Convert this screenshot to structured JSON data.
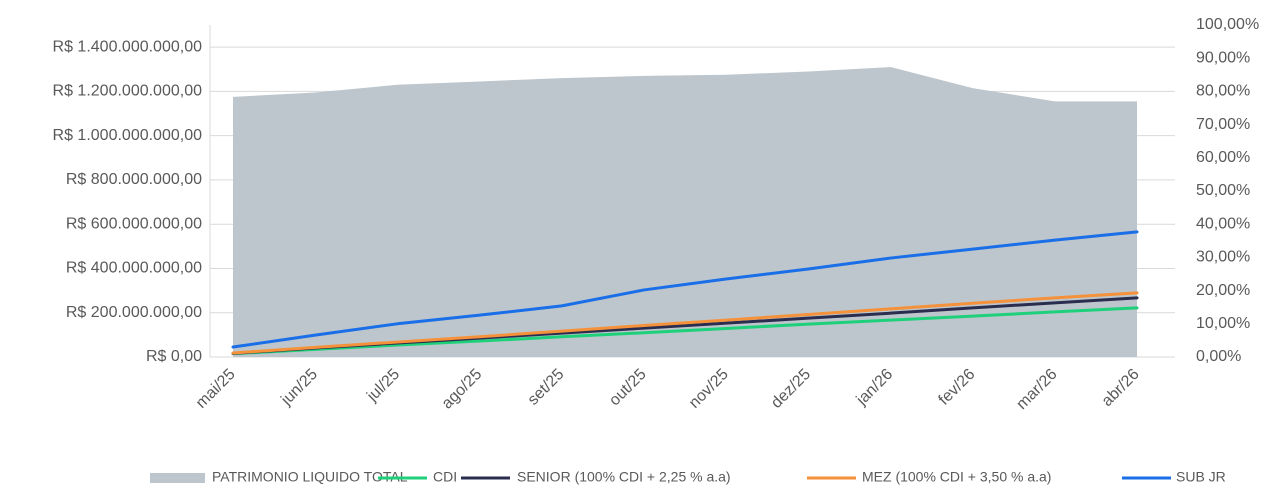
{
  "chart_data": {
    "type": "combo",
    "categories": [
      "mai/25",
      "jun/25",
      "jul/25",
      "ago/25",
      "set/25",
      "out/25",
      "nov/25",
      "dez/25",
      "jan/26",
      "fev/26",
      "mar/26",
      "abr/26"
    ],
    "ylim": [
      0,
      1500000000
    ],
    "yticks": [
      {
        "value": 0,
        "label": "R$ 0,00"
      },
      {
        "value": 200000000,
        "label": "R$ 200.000.000,00"
      },
      {
        "value": 400000000,
        "label": "R$ 400.000.000,00"
      },
      {
        "value": 600000000,
        "label": "R$ 600.000.000,00"
      },
      {
        "value": 800000000,
        "label": "R$ 800.000.000,00"
      },
      {
        "value": 1000000000,
        "label": "R$ 1.000.000.000,00"
      },
      {
        "value": 1200000000,
        "label": "R$ 1.200.000.000,00"
      },
      {
        "value": 1400000000,
        "label": "R$ 1.400.000.000,00"
      }
    ],
    "y2lim": [
      0,
      100
    ],
    "y2ticks": [
      {
        "value": 0,
        "label": "0,00%"
      },
      {
        "value": 10,
        "label": "10,00%"
      },
      {
        "value": 20,
        "label": "20,00%"
      },
      {
        "value": 30,
        "label": "30,00%"
      },
      {
        "value": 40,
        "label": "40,00%"
      },
      {
        "value": 50,
        "label": "50,00%"
      },
      {
        "value": 60,
        "label": "60,00%"
      },
      {
        "value": 70,
        "label": "70,00%"
      },
      {
        "value": 80,
        "label": "80,00%"
      },
      {
        "value": 90,
        "label": "90,00%"
      },
      {
        "value": 100,
        "label": "100,00%"
      }
    ],
    "grid": true,
    "legend": "bottom",
    "series": [
      {
        "name": "PATRIMONIO LIQUIDO TOTAL",
        "type": "area",
        "color": "#bdc6cc",
        "axis": "y",
        "values": [
          1175000000,
          1195000000,
          1230000000,
          1245000000,
          1260000000,
          1270000000,
          1275000000,
          1290000000,
          1310000000,
          1215000000,
          1155000000,
          1155000000
        ]
      },
      {
        "name": "CDI",
        "type": "line",
        "color": "#1fd07a",
        "axis": "y2",
        "values": [
          1.0,
          2.3,
          3.6,
          4.8,
          6.1,
          7.3,
          8.6,
          9.9,
          11.1,
          12.3,
          13.6,
          14.8
        ]
      },
      {
        "name": "SENIOR (100% CDI + 2,25 % a.a)",
        "type": "line",
        "color": "#2b2d4f",
        "axis": "y2",
        "values": [
          1.1,
          2.7,
          4.2,
          5.7,
          7.2,
          8.7,
          10.2,
          11.7,
          13.2,
          14.8,
          16.3,
          17.8
        ]
      },
      {
        "name": "MEZ (100% CDI + 3,50 % a.a)",
        "type": "line",
        "color": "#f5913a",
        "axis": "y2",
        "values": [
          1.2,
          2.9,
          4.5,
          6.1,
          7.8,
          9.5,
          11.1,
          12.8,
          14.5,
          16.2,
          17.8,
          19.3
        ]
      },
      {
        "name": "SUB JR",
        "type": "line",
        "color": "#1a6fe8",
        "axis": "y2",
        "values": [
          3.0,
          6.6,
          10.0,
          12.6,
          15.4,
          20.2,
          23.5,
          26.5,
          29.8,
          32.5,
          35.2,
          37.7
        ]
      }
    ]
  }
}
